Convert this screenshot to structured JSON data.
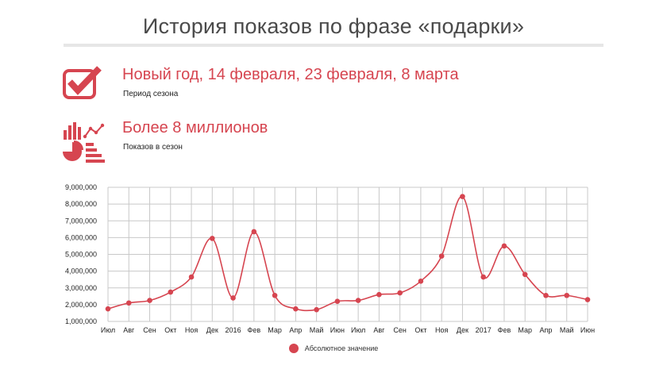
{
  "header": {
    "title": "История показов по фразе «подарки»"
  },
  "stats": {
    "season": {
      "headline": "Новый год, 14 февраля, 23 февраля, 8 марта",
      "caption": "Период сезона",
      "icon": "checkbox-check-icon"
    },
    "shows": {
      "headline": "Более 8 миллионов",
      "caption": "Показов в сезон",
      "icon": "charts-infographic-icon"
    }
  },
  "colors": {
    "accent": "#d64550",
    "grid": "#c8c8c8",
    "text": "#222222"
  },
  "legend": {
    "label": "Абсолютное значение"
  },
  "chart_data": {
    "type": "line",
    "categories": [
      "Июл",
      "Авг",
      "Сен",
      "Окт",
      "Ноя",
      "Дек",
      "2016",
      "Фев",
      "Мар",
      "Апр",
      "Май",
      "Июн",
      "Июл",
      "Авг",
      "Сен",
      "Окт",
      "Ноя",
      "Дек",
      "2017",
      "Фев",
      "Мар",
      "Апр",
      "Май",
      "Июн"
    ],
    "series": [
      {
        "name": "Абсолютное значение",
        "values": [
          1750000,
          2100000,
          2250000,
          2750000,
          3650000,
          5950000,
          2400000,
          6350000,
          2550000,
          1750000,
          1700000,
          2200000,
          2250000,
          2600000,
          2700000,
          3400000,
          4900000,
          8450000,
          3650000,
          5500000,
          3800000,
          2550000,
          2550000,
          2300000
        ]
      }
    ],
    "yticks": [
      "1,000,000",
      "2,000,000",
      "3,000,000",
      "4,000,000",
      "5,000,000",
      "6,000,000",
      "7,000,000",
      "8,000,000",
      "9,000,000"
    ],
    "ylim": [
      1000000,
      9000000
    ],
    "grid": true,
    "legend_position": "bottom",
    "title": "",
    "xlabel": "",
    "ylabel": ""
  }
}
